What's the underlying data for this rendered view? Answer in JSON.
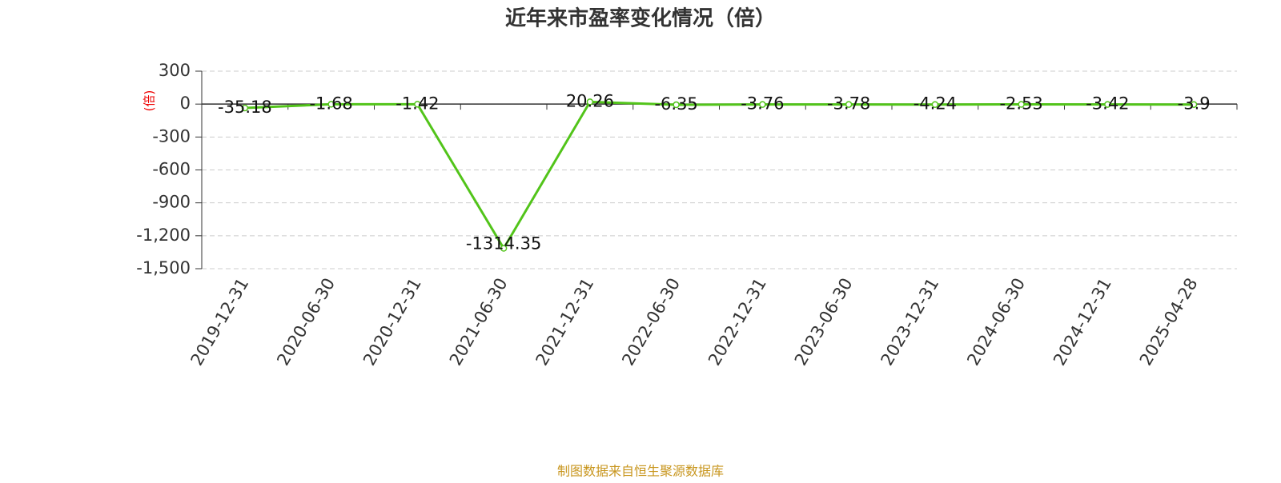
{
  "chart_data": {
    "type": "line",
    "title": "近年来市盈率变化情况（倍）",
    "y_label": "(倍)",
    "source": "制图数据来自恒生聚源数据库",
    "categories": [
      "2019-12-31",
      "2020-06-30",
      "2020-12-31",
      "2021-06-30",
      "2021-12-31",
      "2022-06-30",
      "2022-12-31",
      "2023-06-30",
      "2023-12-31",
      "2024-06-30",
      "2024-12-31",
      "2025-04-28"
    ],
    "series": [
      {
        "name": "市盈率",
        "color": "#52c41a",
        "values": [
          -35.18,
          -1.68,
          -1.42,
          -1314.35,
          20.26,
          -6.35,
          -3.76,
          -3.78,
          -4.24,
          -2.53,
          -3.42,
          -3.9
        ]
      }
    ],
    "ylim": [
      -1500,
      300
    ],
    "yticks": [
      {
        "value": -1500,
        "label": "-1,500"
      },
      {
        "value": -1200,
        "label": "-1,200"
      },
      -900,
      -600,
      -300,
      0,
      300
    ],
    "grid": true
  }
}
